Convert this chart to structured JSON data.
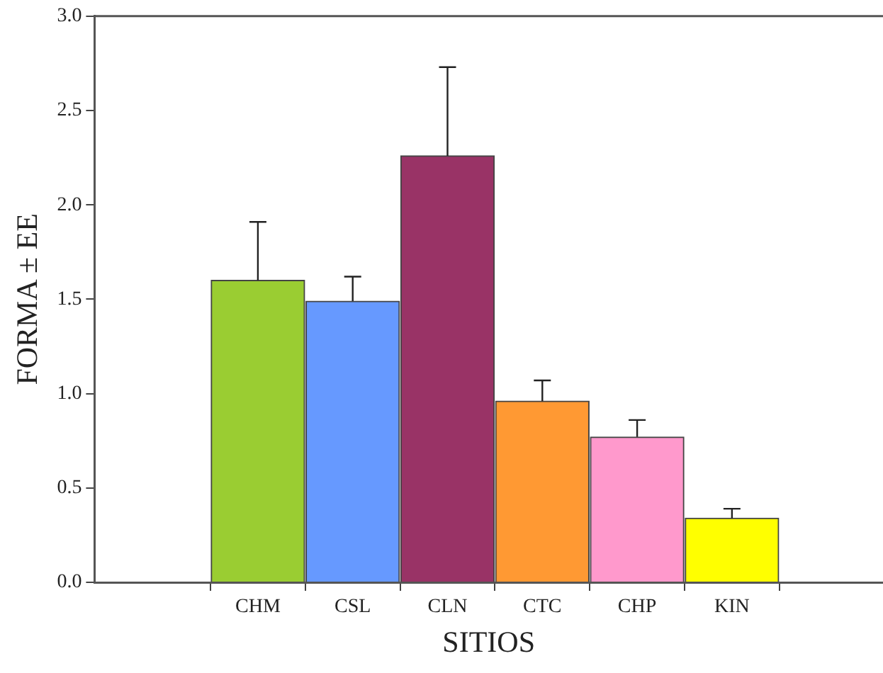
{
  "chart_data": {
    "type": "bar",
    "xlabel": "SITIOS",
    "ylabel": "FORMA ± EE",
    "categories": [
      "CHM",
      "CSL",
      "CLN",
      "CTC",
      "CHP",
      "KIN"
    ],
    "values": [
      1.6,
      1.49,
      2.26,
      0.96,
      0.77,
      0.34
    ],
    "colors": [
      "#9acd32",
      "#6699ff",
      "#993366",
      "#ff9933",
      "#ff99cc",
      "#ffff00"
    ],
    "errors": [
      [
        1.6,
        1.91
      ],
      [
        1.49,
        1.62
      ],
      [
        2.26,
        2.73
      ],
      [
        0.96,
        1.07
      ],
      [
        0.77,
        0.86
      ],
      [
        0.34,
        0.39
      ]
    ],
    "ylim": [
      0,
      3
    ],
    "yticks": [
      {
        "value": 0,
        "label": "0.0"
      },
      {
        "value": 0.5,
        "label": "0.5"
      },
      {
        "value": 1,
        "label": "1.0"
      },
      {
        "value": 1.5,
        "label": "1.5"
      },
      {
        "value": 2,
        "label": "2.0"
      },
      {
        "value": 2.5,
        "label": "2.5"
      },
      {
        "value": 3,
        "label": "3.0"
      }
    ],
    "grid": false,
    "legend": false
  }
}
